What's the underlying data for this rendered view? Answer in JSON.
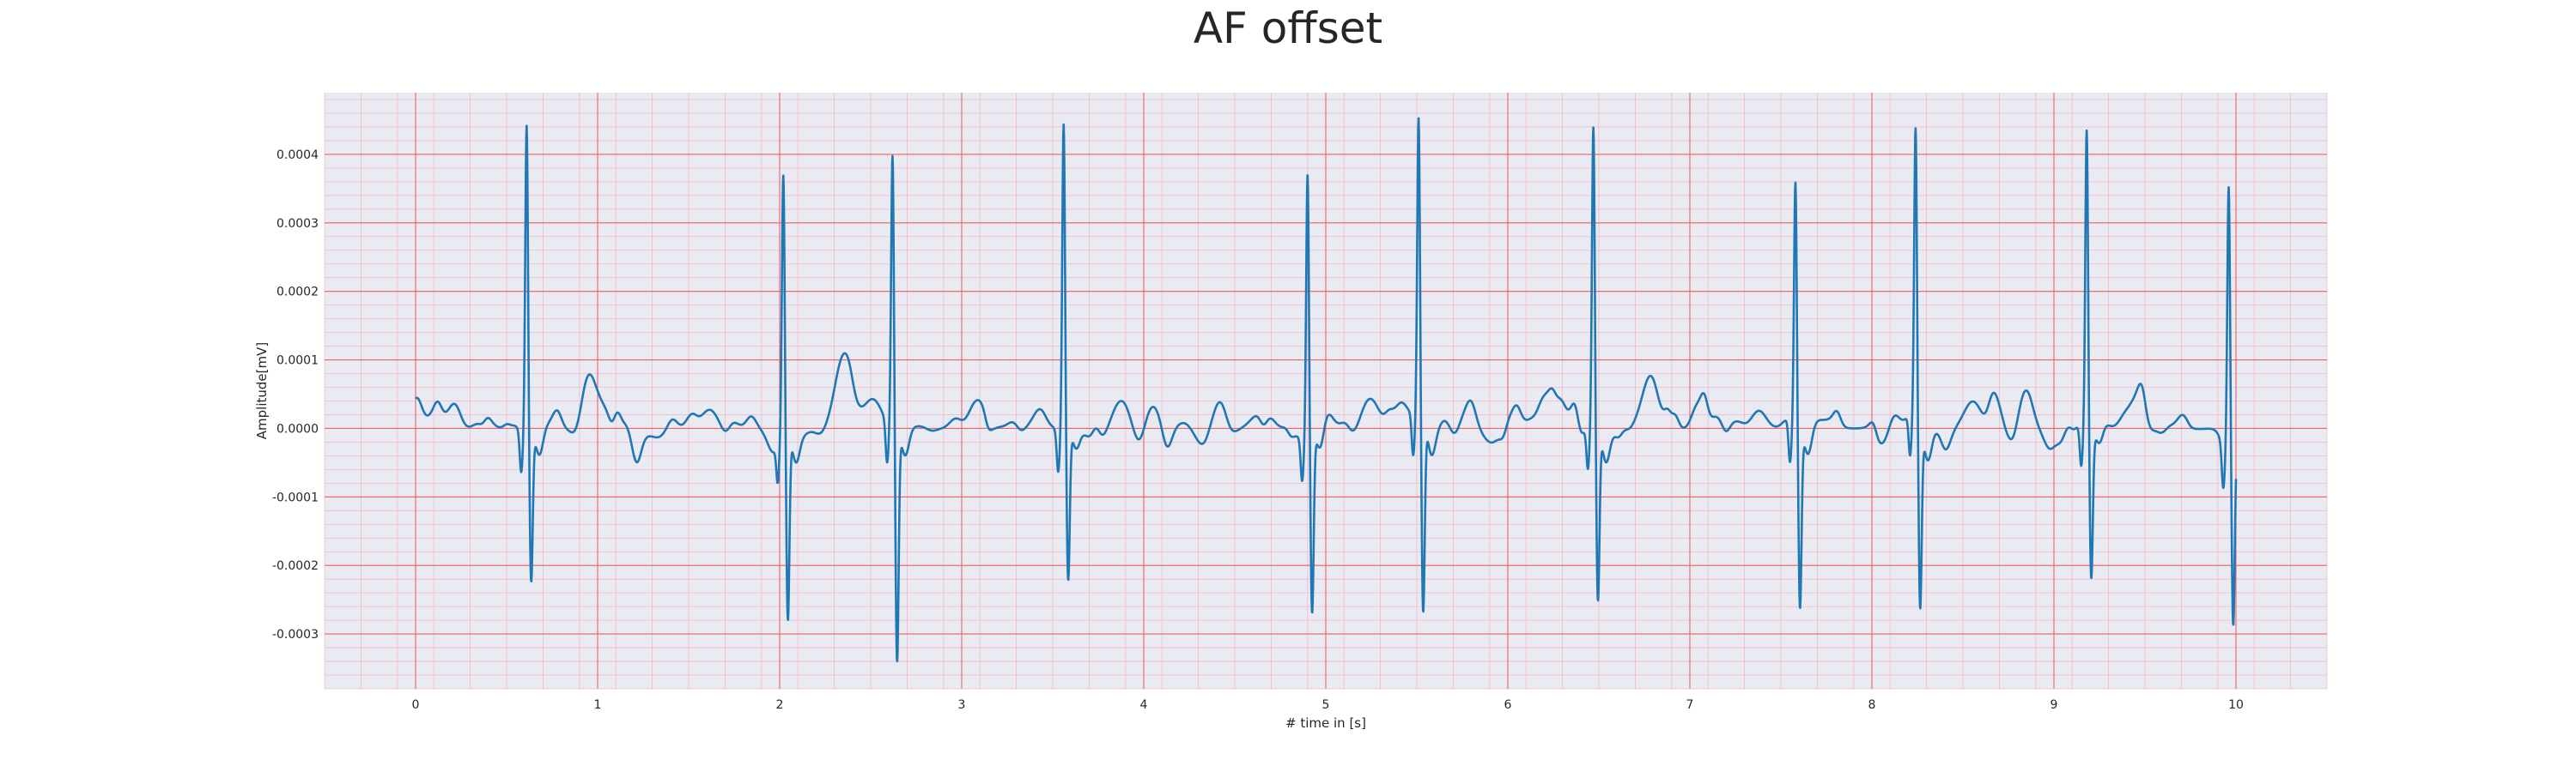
{
  "chart_data": {
    "type": "line",
    "title": "AF offset",
    "xlabel": "# time in [s]",
    "ylabel": "Amplitude[mV]",
    "xlim": [
      -0.5,
      10.5
    ],
    "ylim": [
      -0.00038,
      0.00049
    ],
    "xticks": [
      0,
      1,
      2,
      3,
      4,
      5,
      6,
      7,
      8,
      9,
      10
    ],
    "yticks": [
      -0.0003,
      -0.0002,
      -0.0001,
      0.0,
      0.0001,
      0.0002,
      0.0003,
      0.0004
    ],
    "ytick_labels": [
      "-0.0003",
      "-0.0002",
      "-0.0001",
      "0.0000",
      "0.0001",
      "0.0002",
      "0.0003",
      "0.0004"
    ],
    "grid": true,
    "colors": {
      "line": "#1f77b4",
      "plot_background": "#eaeaf2",
      "major_grid": "#f06060",
      "minor_grid": "#f2a6b6"
    },
    "series": [
      {
        "beats": [
          {
            "t": 0.61,
            "r": 0.00045,
            "s": -0.00022
          },
          {
            "t": 2.02,
            "r": 0.00037,
            "s": -0.00028
          },
          {
            "t": 2.62,
            "r": 0.0004,
            "s": -0.00034
          },
          {
            "t": 3.56,
            "r": 0.00045,
            "s": -0.00022
          },
          {
            "t": 4.9,
            "r": 0.00039,
            "s": -0.00026
          },
          {
            "t": 5.51,
            "r": 0.00044,
            "s": -0.00028
          },
          {
            "t": 6.47,
            "r": 0.00044,
            "s": -0.00025
          },
          {
            "t": 7.58,
            "r": 0.00036,
            "s": -0.00026
          },
          {
            "t": 8.24,
            "r": 0.00042,
            "s": -0.00027
          },
          {
            "t": 9.18,
            "r": 0.00044,
            "s": -0.00021
          },
          {
            "t": 9.96,
            "r": 0.00038,
            "s": -0.00028
          }
        ],
        "waves": [
          {
            "t": 0.95,
            "a": 8e-05
          },
          {
            "t": 2.35,
            "a": 5e-05
          },
          {
            "t": 3.88,
            "a": 4e-05
          },
          {
            "t": 5.25,
            "a": 4e-05
          },
          {
            "t": 6.78,
            "a": 7e-05
          },
          {
            "t": 8.55,
            "a": 4e-05
          },
          {
            "t": 9.45,
            "a": 4e-05
          }
        ]
      }
    ]
  }
}
